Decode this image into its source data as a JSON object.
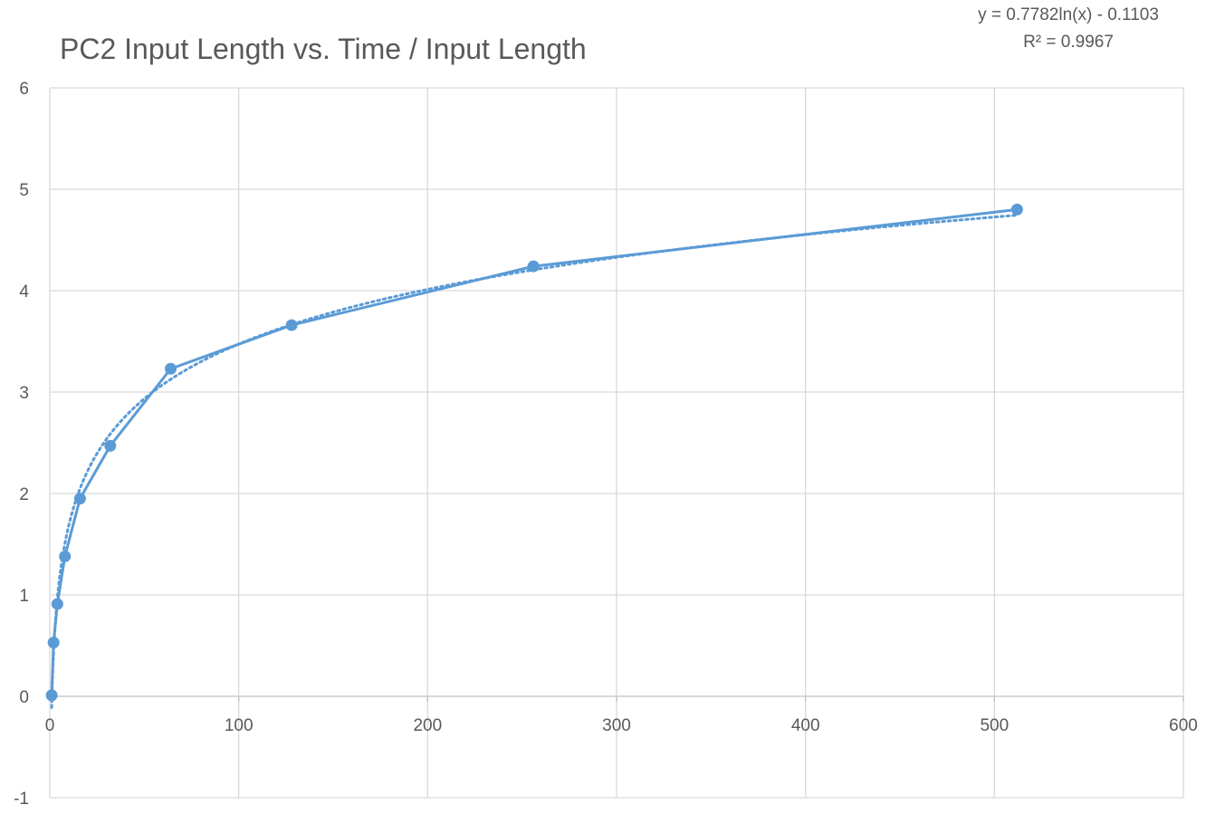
{
  "chart_data": {
    "type": "scatter",
    "title": "PC2 Input Length vs. Time / Input Length",
    "xlabel": "",
    "ylabel": "",
    "xlim": [
      0,
      600
    ],
    "ylim": [
      -1,
      6
    ],
    "xticks": [
      0,
      100,
      200,
      300,
      400,
      500,
      600
    ],
    "yticks": [
      -1,
      0,
      1,
      2,
      3,
      4,
      5,
      6
    ],
    "grid": true,
    "series": [
      {
        "x": [
          1,
          2,
          4,
          8,
          16,
          32,
          64,
          128,
          256,
          512
        ],
        "y": [
          0.01,
          0.53,
          0.91,
          1.38,
          1.95,
          2.47,
          3.23,
          3.66,
          4.24,
          4.8
        ],
        "markers": true,
        "line": "solid"
      }
    ],
    "trendline": {
      "type": "logarithmic",
      "a": 0.7782,
      "b": -0.1103,
      "style": "dotted",
      "equation": "y = 0.7782ln(x) - 0.1103",
      "r_squared": "R² = 0.9967"
    },
    "colors": {
      "series": "#5b9bd5",
      "grid": "#d9d9d9",
      "axis": "#bfbfbf",
      "text": "#595959"
    }
  }
}
